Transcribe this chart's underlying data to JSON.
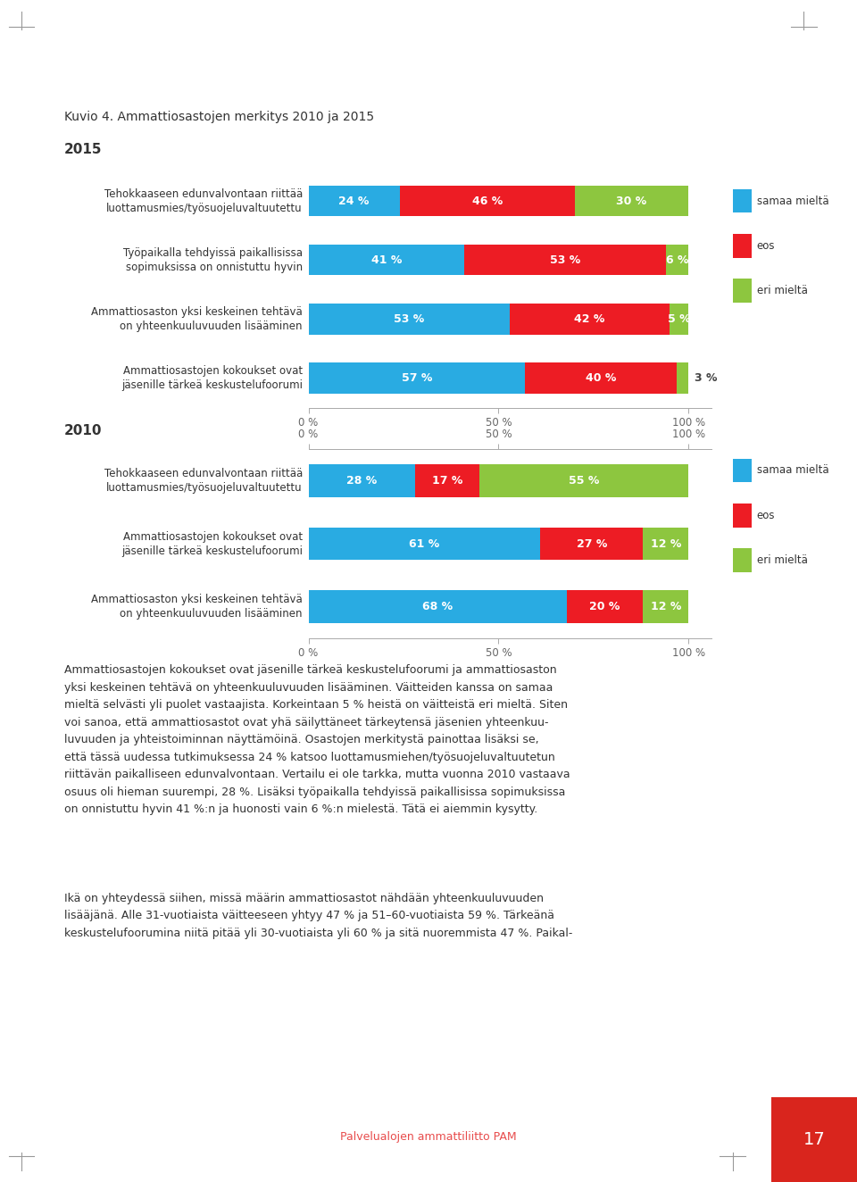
{
  "title": "Kuvio 4. Ammattiosastojen merkitys 2010 ja 2015",
  "section_2015": "2015",
  "section_2010": "2010",
  "color_blue": "#29ABE2",
  "color_red": "#ED1C24",
  "color_green": "#8DC63F",
  "legend_labels": [
    "samaa mieltä",
    "eos",
    "eri mieltä"
  ],
  "bars_2015": [
    {
      "label": "Tehokkaaseen edunvalvontaan riittää\nluottamusmies/työsuojeluvaltuutettu",
      "samaa": 24,
      "eos": 46,
      "eri": 30
    },
    {
      "label": "Työpaikalla tehdyissä paikallisissa\nsopimuksissa on onnistuttu hyvin",
      "samaa": 41,
      "eos": 53,
      "eri": 6
    },
    {
      "label": "Ammattiosaston yksi keskeinen tehtävä\non yhteenkuuluvuuden lisääminen",
      "samaa": 53,
      "eos": 42,
      "eri": 5
    },
    {
      "label": "Ammattiosastojen kokoukset ovat\njäsenille tärkeä keskustelufoorumi",
      "samaa": 57,
      "eos": 40,
      "eri": 3
    }
  ],
  "bars_2010": [
    {
      "label": "Tehokkaaseen edunvalvontaan riittää\nluottamusmies/työsuojeluvaltuutettu",
      "samaa": 28,
      "eos": 17,
      "eri": 55
    },
    {
      "label": "Ammattiosastojen kokoukset ovat\njäsenille tärkeä keskustelufoorumi",
      "samaa": 61,
      "eos": 27,
      "eri": 12
    },
    {
      "label": "Ammattiosaston yksi keskeinen tehtävä\non yhteenkuuluvuuden lisääminen",
      "samaa": 68,
      "eos": 20,
      "eri": 12
    }
  ],
  "paragraph1": "Ammattiosastojen kokoukset ovat jäsenille tärkeä keskustelufoorumi ja ammattiosaston\nyksi keskeinen tehtävä on yhteenkuuluvuuden lisääminen. Väitteiden kanssa on samaa\nmieltä selvästi yli puolet vastaajista. Korkeintaan 5 % heistä on väitteistä eri mieltä. Siten\nvoi sanoa, että ammattiosastot ovat yhä säilyttäneet tärkeytensä jäsenien yhteenkuu-\nluvuuden ja yhteistoiminnan näyttämöinä. Osastojen merkitystä painottaa lisäksi se,\nettä tässä uudessa tutkimuksessa 24 % katsoo luottamusmiehen/työsuojeluvaltuutetun\nriittävän paikalliseen edunvalvontaan. Vertailu ei ole tarkka, mutta vuonna 2010 vastaava\nosuus oli hieman suurempi, 28 %. Lisäksi työpaikalla tehdyissä paikallisissa sopimuksissa\non onnistuttu hyvin 41 %:n ja huonosti vain 6 %:n mielestä. Tätä ei aiemmin kysytty.",
  "paragraph2": "Ikä on yhteydessä siihen, missä määrin ammattiosastot nähdään yhteenkuuluvuuden\nlisääjänä. Alle 31-vuotiaista väitteeseen yhtyy 47 % ja 51–60-vuotiaista 59 %. Tärkeänä\nkeskustelufoorumina niitä pitää yli 30-vuotiaista yli 60 % ja sitä nuoremmista 47 %. Paikal-",
  "footer_text": "Palvelualojen ammattiliitto PAM",
  "page_number": "17",
  "footer_color": "#E84C4C",
  "page_bg": "#FFFFFF",
  "corner_red_color": "#D9251D"
}
